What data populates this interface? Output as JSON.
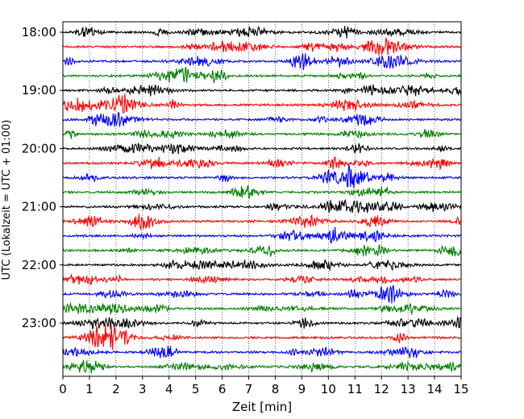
{
  "chart_data": {
    "type": "line",
    "title": "",
    "xlabel": "Zeit  [min]",
    "ylabel": "UTC (Lokalzeit = UTC + 01:00)",
    "xlim": [
      0,
      15
    ],
    "x_ticks": [
      0,
      1,
      2,
      3,
      4,
      5,
      6,
      7,
      8,
      9,
      10,
      11,
      12,
      13,
      14,
      15
    ],
    "y_tick_labels": [
      "18:00",
      "19:00",
      "20:00",
      "21:00",
      "22:00",
      "23:00"
    ],
    "grid": "vertical dotted lines at each minute",
    "trace_interval_minutes": 15,
    "trace_colors": [
      "#000000",
      "#ff0000",
      "#0000ff",
      "#008000"
    ],
    "traces": [
      {
        "start": "18:00",
        "color": "#000000"
      },
      {
        "start": "18:15",
        "color": "#ff0000"
      },
      {
        "start": "18:30",
        "color": "#0000ff"
      },
      {
        "start": "18:45",
        "color": "#008000"
      },
      {
        "start": "19:00",
        "color": "#000000"
      },
      {
        "start": "19:15",
        "color": "#ff0000"
      },
      {
        "start": "19:30",
        "color": "#0000ff"
      },
      {
        "start": "19:45",
        "color": "#008000"
      },
      {
        "start": "20:00",
        "color": "#000000"
      },
      {
        "start": "20:15",
        "color": "#ff0000"
      },
      {
        "start": "20:30",
        "color": "#0000ff"
      },
      {
        "start": "20:45",
        "color": "#008000"
      },
      {
        "start": "21:00",
        "color": "#000000"
      },
      {
        "start": "21:15",
        "color": "#ff0000"
      },
      {
        "start": "21:30",
        "color": "#0000ff"
      },
      {
        "start": "21:45",
        "color": "#008000"
      },
      {
        "start": "22:00",
        "color": "#000000"
      },
      {
        "start": "22:15",
        "color": "#ff0000"
      },
      {
        "start": "22:30",
        "color": "#0000ff"
      },
      {
        "start": "22:45",
        "color": "#008000"
      },
      {
        "start": "23:00",
        "color": "#000000"
      },
      {
        "start": "23:15",
        "color": "#ff0000"
      },
      {
        "start": "23:30",
        "color": "#0000ff"
      },
      {
        "start": "23:45",
        "color": "#008000"
      }
    ]
  }
}
